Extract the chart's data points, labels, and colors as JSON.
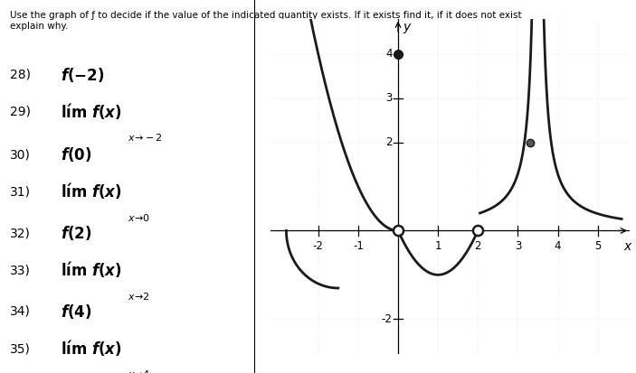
{
  "title_text": "Use the graph of ƒ to decide if the value of the indicated quantity exists. If it exists find it, if it does not exist\nexplain why.",
  "xlim": [
    -3.2,
    5.8
  ],
  "ylim": [
    -2.8,
    4.8
  ],
  "xticks": [
    -2,
    -1,
    1,
    2,
    3,
    4,
    5
  ],
  "yticks": [
    -2,
    2,
    3,
    4
  ],
  "xlabel": "x",
  "ylabel": "y",
  "curve_color": "#1a1a1a",
  "bg_color": "#ffffff",
  "divider_x": 0.4
}
